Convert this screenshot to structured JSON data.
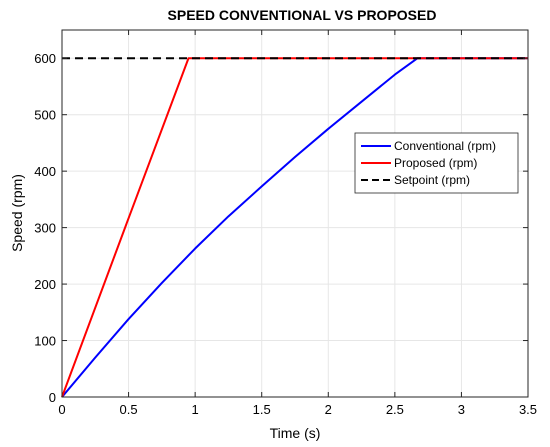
{
  "chart_data": {
    "type": "line",
    "title": "SPEED CONVENTIONAL VS PROPOSED",
    "xlabel": "Time (s)",
    "ylabel": "Speed (rpm)",
    "xlim": [
      0,
      3.5
    ],
    "ylim": [
      0,
      650
    ],
    "xticks": [
      0,
      0.5,
      1,
      1.5,
      2,
      2.5,
      3,
      3.5
    ],
    "xtick_labels": [
      "0",
      "0.5",
      "1",
      "1.5",
      "2",
      "2.5",
      "3",
      "3.5"
    ],
    "yticks": [
      0,
      100,
      200,
      300,
      400,
      500,
      600
    ],
    "ytick_labels": [
      "0",
      "100",
      "200",
      "300",
      "400",
      "500",
      "600"
    ],
    "grid": true,
    "legend_position": "right",
    "series": [
      {
        "name": "Conventional (rpm)",
        "color": "#0000ff",
        "style": "solid",
        "x": [
          0,
          0.25,
          0.5,
          0.75,
          1.0,
          1.25,
          1.5,
          1.75,
          2.0,
          2.25,
          2.5,
          2.67,
          3.0,
          3.5
        ],
        "y": [
          0,
          70,
          138,
          202,
          263,
          320,
          373,
          425,
          475,
          523,
          571,
          600,
          600,
          600
        ]
      },
      {
        "name": "Proposed (rpm)",
        "color": "#ff0000",
        "style": "solid",
        "x": [
          0,
          0.48,
          0.95,
          1.5,
          2.0,
          2.5,
          3.0,
          3.5
        ],
        "y": [
          0,
          304,
          600,
          600,
          600,
          600,
          600,
          600
        ]
      },
      {
        "name": "Setpoint (rpm)",
        "color": "#000000",
        "style": "dashed",
        "x": [
          0,
          3.5
        ],
        "y": [
          600,
          600
        ]
      }
    ]
  }
}
